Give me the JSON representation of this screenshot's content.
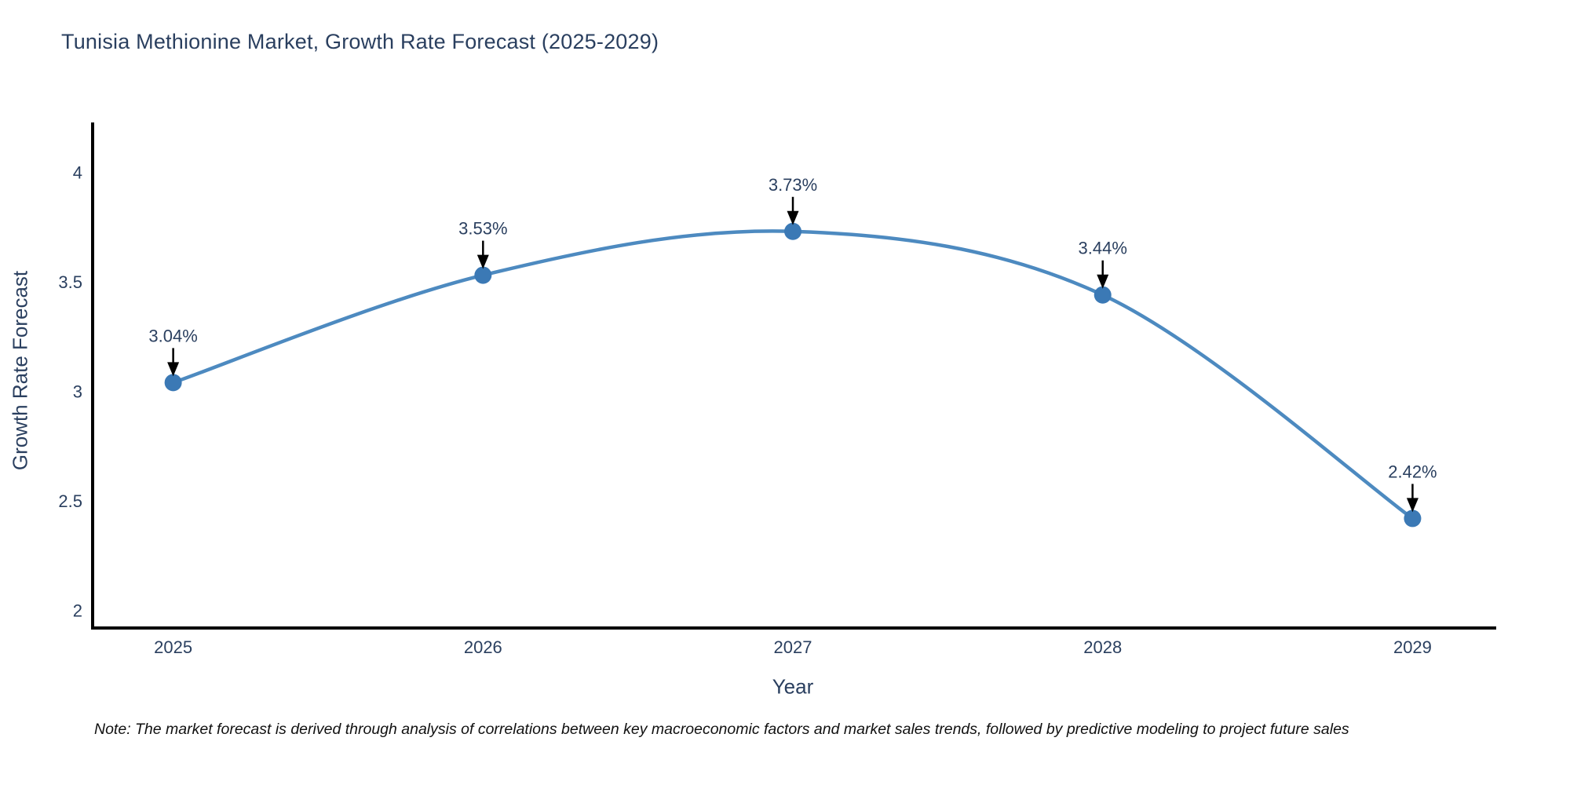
{
  "header": {
    "title": "Tunisia Methionine Market, Growth Rate Forecast (2025-2029)"
  },
  "note": "Note: The market forecast is derived through analysis of correlations between key macroeconomic factors and market sales trends, followed by predictive modeling to project future sales",
  "chart_data": {
    "type": "line",
    "title": "Tunisia Methionine Market, Growth Rate Forecast (2025-2029)",
    "xlabel": "Year",
    "ylabel": "Growth Rate Forecast",
    "categories": [
      2025,
      2026,
      2027,
      2028,
      2029
    ],
    "values": [
      3.04,
      3.53,
      3.73,
      3.44,
      2.42
    ],
    "point_labels": [
      "3.04%",
      "3.53%",
      "3.73%",
      "3.44%",
      "2.42%"
    ],
    "yticks": [
      2,
      2.5,
      3,
      3.5,
      4
    ],
    "ylim": [
      1.92,
      4.22
    ],
    "xlim": [
      2024.74,
      2029.27
    ],
    "line_shape": "spline",
    "grid": false,
    "legend": "none",
    "colors": {
      "line": "#4d8ac0",
      "marker": "#3b79b5",
      "axis": "#000000",
      "text": "#2a3f5f",
      "arrow": "#000000",
      "background": "#ffffff"
    }
  }
}
